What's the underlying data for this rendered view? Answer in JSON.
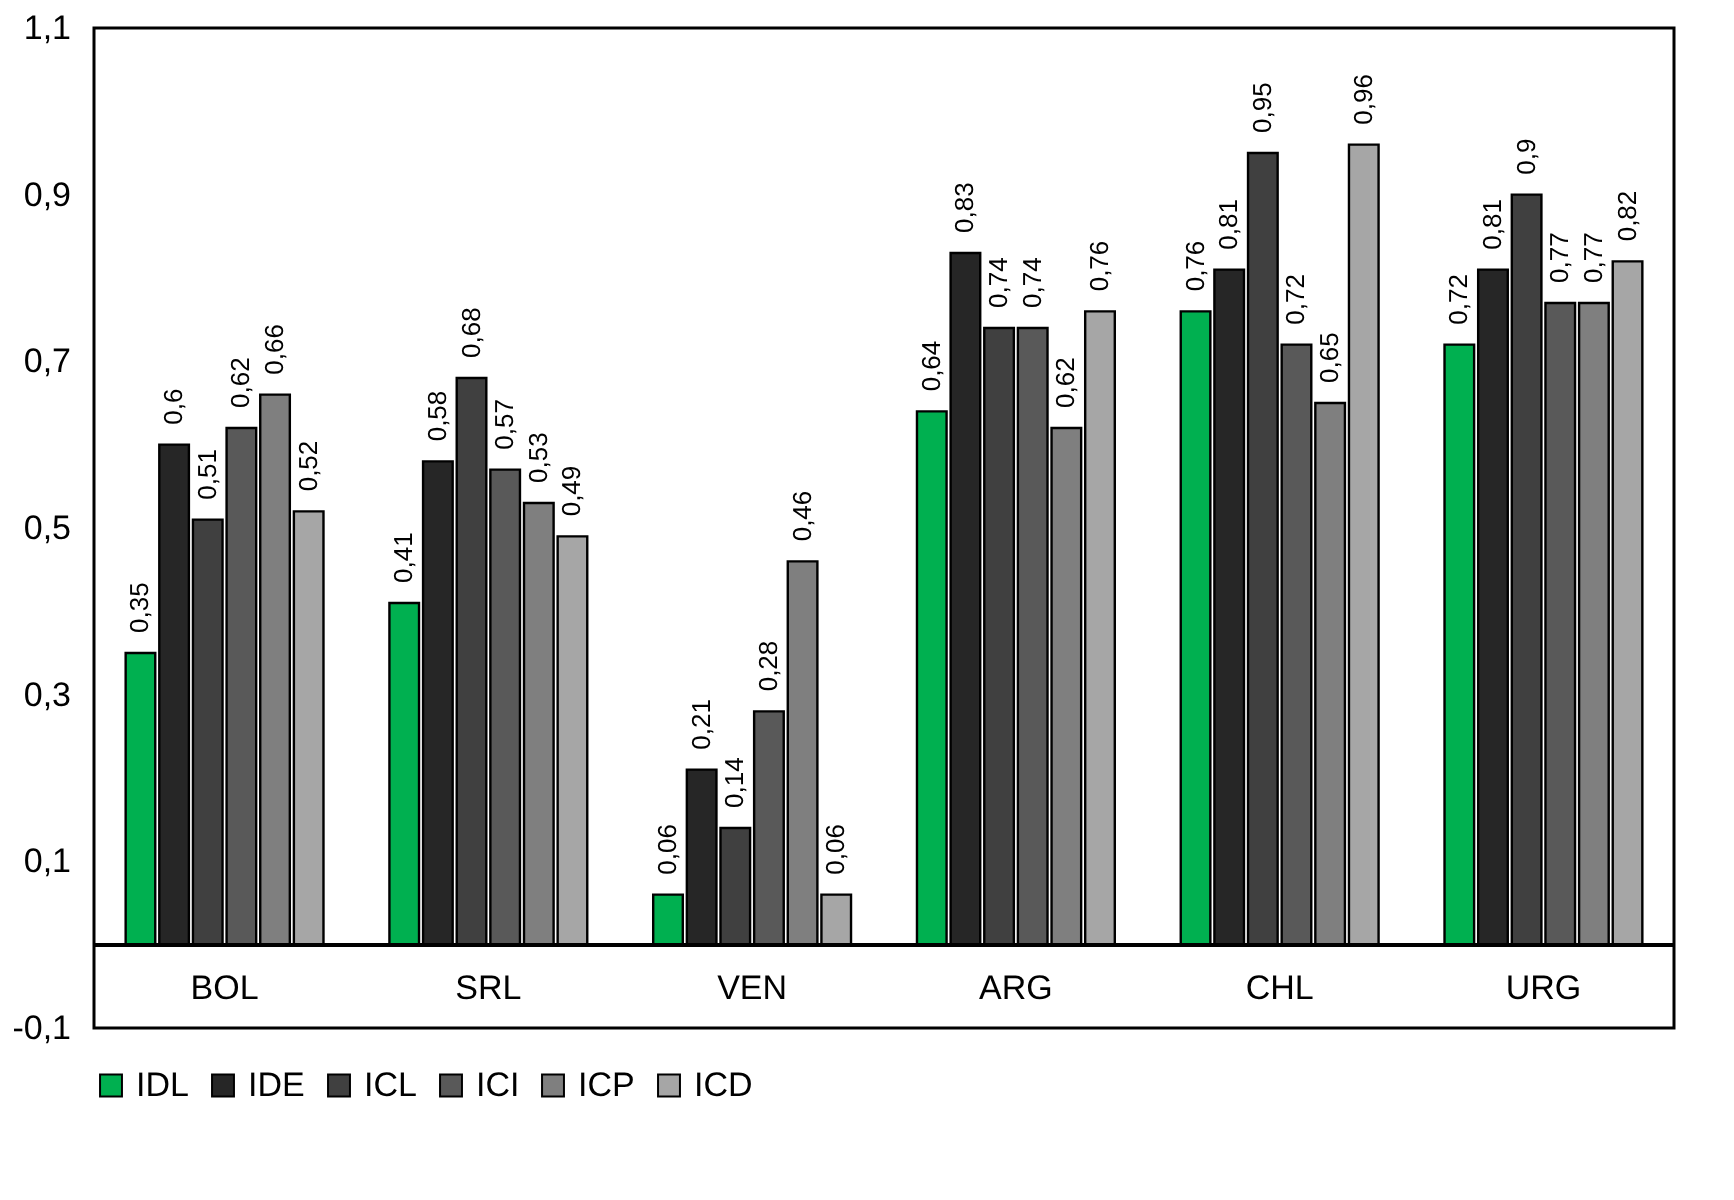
{
  "chart_data": {
    "type": "bar",
    "categories": [
      "BOL",
      "SRL",
      "VEN",
      "ARG",
      "CHL",
      "URG"
    ],
    "series": [
      {
        "name": "IDL",
        "color": "#00b050",
        "values": [
          0.35,
          0.41,
          0.06,
          0.64,
          0.76,
          0.72
        ],
        "value_labels": [
          "0,35",
          "0,41",
          "0,06",
          "0,64",
          "0,76",
          "0,72"
        ]
      },
      {
        "name": "IDE",
        "color": "#262626",
        "values": [
          0.6,
          0.58,
          0.21,
          0.83,
          0.81,
          0.81
        ],
        "value_labels": [
          "0,6",
          "0,58",
          "0,21",
          "0,83",
          "0,81",
          "0,81"
        ]
      },
      {
        "name": "ICL",
        "color": "#404040",
        "values": [
          0.51,
          0.68,
          0.14,
          0.74,
          0.95,
          0.9
        ],
        "value_labels": [
          "0,51",
          "0,68",
          "0,14",
          "0,74",
          "0,95",
          "0,9"
        ]
      },
      {
        "name": "ICI",
        "color": "#595959",
        "values": [
          0.62,
          0.57,
          0.28,
          0.74,
          0.72,
          0.77
        ],
        "value_labels": [
          "0,62",
          "0,57",
          "0,28",
          "0,74",
          "0,72",
          "0,77"
        ]
      },
      {
        "name": "ICP",
        "color": "#7f7f7f",
        "values": [
          0.66,
          0.53,
          0.46,
          0.62,
          0.65,
          0.77
        ],
        "value_labels": [
          "0,66",
          "0,53",
          "0,46",
          "0,62",
          "0,65",
          "0,77"
        ]
      },
      {
        "name": "ICD",
        "color": "#a6a6a6",
        "values": [
          0.52,
          0.49,
          0.06,
          0.76,
          0.96,
          0.82
        ],
        "value_labels": [
          "0,52",
          "0,49",
          "0,06",
          "0,76",
          "0,96",
          "0,82"
        ]
      }
    ],
    "ylim": [
      -0.1,
      1.1
    ],
    "yticks": [
      {
        "value": -0.1,
        "label": "-0,1"
      },
      {
        "value": 0.1,
        "label": "0,1"
      },
      {
        "value": 0.3,
        "label": "0,3"
      },
      {
        "value": 0.5,
        "label": "0,5"
      },
      {
        "value": 0.7,
        "label": "0,7"
      },
      {
        "value": 0.9,
        "label": "0,9"
      },
      {
        "value": 1.1,
        "label": "1,1"
      }
    ],
    "grid": false,
    "legend": "bottom"
  }
}
